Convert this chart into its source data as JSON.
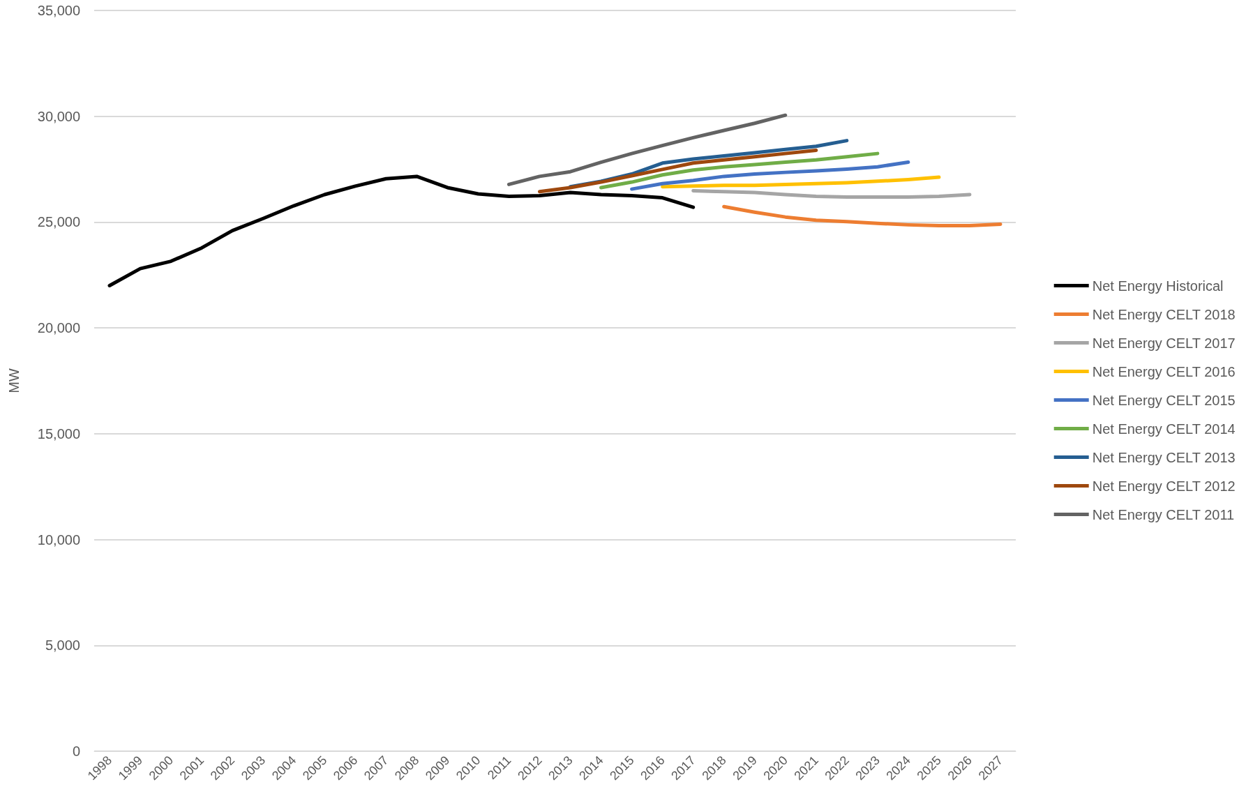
{
  "chart_data": {
    "type": "line",
    "ylabel": "MW",
    "categories": [
      "1998",
      "1999",
      "2000",
      "2001",
      "2002",
      "2003",
      "2004",
      "2005",
      "2006",
      "2007",
      "2008",
      "2009",
      "2010",
      "2011",
      "2012",
      "2013",
      "2014",
      "2015",
      "2016",
      "2017",
      "2018",
      "2019",
      "2020",
      "2021",
      "2022",
      "2023",
      "2024",
      "2025",
      "2026",
      "2027"
    ],
    "ylim": [
      0,
      35000
    ],
    "yticks": [
      {
        "value": 0,
        "label": "0"
      },
      {
        "value": 5000,
        "label": "5,000"
      },
      {
        "value": 10000,
        "label": "10,000"
      },
      {
        "value": 15000,
        "label": "15,000"
      },
      {
        "value": 20000,
        "label": "20,000"
      },
      {
        "value": 25000,
        "label": "25,000"
      },
      {
        "value": 30000,
        "label": "30,000"
      },
      {
        "value": 35000,
        "label": "35,000"
      }
    ],
    "grid": "y",
    "legend": "right",
    "marker": "none",
    "line_style": "solid",
    "series": [
      {
        "name": "Net Energy Historical",
        "color": "#000000",
        "values": [
          22000,
          22800,
          23150,
          23780,
          24600,
          25170,
          25770,
          26300,
          26700,
          27050,
          27160,
          26630,
          26330,
          26220,
          26250,
          26400,
          26300,
          26250,
          26150,
          25700,
          null,
          null,
          null,
          null,
          null,
          null,
          null,
          null,
          null,
          null
        ]
      },
      {
        "name": "Net Energy CELT 2018",
        "color": "#ed7d31",
        "values": [
          null,
          null,
          null,
          null,
          null,
          null,
          null,
          null,
          null,
          null,
          null,
          null,
          null,
          null,
          null,
          null,
          null,
          null,
          null,
          null,
          25730,
          25470,
          25240,
          25090,
          25020,
          24940,
          24870,
          24830,
          24830,
          24900
        ]
      },
      {
        "name": "Net Energy CELT 2017",
        "color": "#a5a5a5",
        "values": [
          null,
          null,
          null,
          null,
          null,
          null,
          null,
          null,
          null,
          null,
          null,
          null,
          null,
          null,
          null,
          null,
          null,
          null,
          null,
          26480,
          26440,
          26400,
          26300,
          26220,
          26180,
          26180,
          26180,
          26220,
          26300,
          null
        ]
      },
      {
        "name": "Net Energy CELT 2016",
        "color": "#ffc000",
        "values": [
          null,
          null,
          null,
          null,
          null,
          null,
          null,
          null,
          null,
          null,
          null,
          null,
          null,
          null,
          null,
          null,
          null,
          null,
          26670,
          26700,
          26740,
          26740,
          26780,
          26820,
          26860,
          26930,
          27010,
          27120,
          null,
          null
        ]
      },
      {
        "name": "Net Energy CELT 2015",
        "color": "#4472c4",
        "values": [
          null,
          null,
          null,
          null,
          null,
          null,
          null,
          null,
          null,
          null,
          null,
          null,
          null,
          null,
          null,
          null,
          null,
          26560,
          26820,
          26970,
          27160,
          27270,
          27350,
          27420,
          27500,
          27610,
          27830,
          null,
          null,
          null
        ]
      },
      {
        "name": "Net Energy CELT 2014",
        "color": "#70ad47",
        "values": [
          null,
          null,
          null,
          null,
          null,
          null,
          null,
          null,
          null,
          null,
          null,
          null,
          null,
          null,
          null,
          null,
          26630,
          26890,
          27230,
          27460,
          27610,
          27720,
          27830,
          27940,
          28090,
          28240,
          null,
          null,
          null,
          null
        ]
      },
      {
        "name": "Net Energy CELT 2013",
        "color": "#255e91",
        "values": [
          null,
          null,
          null,
          null,
          null,
          null,
          null,
          null,
          null,
          null,
          null,
          null,
          null,
          null,
          null,
          26670,
          26930,
          27270,
          27790,
          27980,
          28130,
          28280,
          28430,
          28580,
          28850,
          null,
          null,
          null,
          null,
          null
        ]
      },
      {
        "name": "Net Energy CELT 2012",
        "color": "#9e480e",
        "values": [
          null,
          null,
          null,
          null,
          null,
          null,
          null,
          null,
          null,
          null,
          null,
          null,
          null,
          null,
          26440,
          26630,
          26890,
          27190,
          27490,
          27790,
          27940,
          28090,
          28240,
          28390,
          null,
          null,
          null,
          null,
          null,
          null
        ]
      },
      {
        "name": "Net Energy CELT 2011",
        "color": "#636363",
        "values": [
          null,
          null,
          null,
          null,
          null,
          null,
          null,
          null,
          null,
          null,
          null,
          null,
          null,
          26780,
          27160,
          27380,
          27830,
          28240,
          28620,
          28990,
          29330,
          29670,
          30050,
          null,
          null,
          null,
          null,
          null,
          null,
          null
        ]
      }
    ]
  }
}
